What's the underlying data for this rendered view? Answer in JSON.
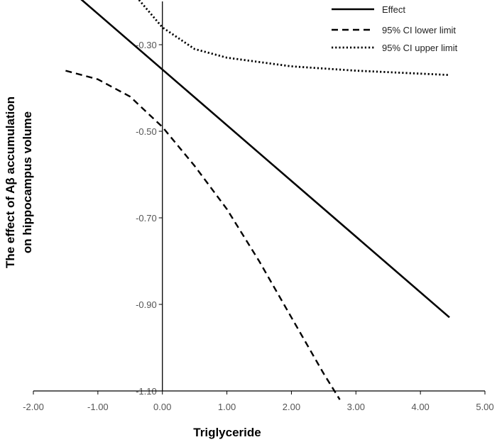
{
  "chart_data": {
    "type": "line",
    "title": "",
    "xlabel": "Triglyceride",
    "ylabel_lines": [
      "The effect of Aβ accumulation",
      "on hippocampus volume"
    ],
    "xlim": [
      -2.0,
      5.0
    ],
    "ylim": [
      -1.1,
      -0.2
    ],
    "x_ticks": [
      -2,
      -1,
      0,
      1,
      2,
      3,
      4,
      5
    ],
    "x_tick_labels": [
      "-2.00",
      "-1.00",
      "0.00",
      "1.00",
      "2.00",
      "3.00",
      "4.00",
      "5.00"
    ],
    "y_ticks": [
      -0.3,
      -0.5,
      -0.7,
      -0.9,
      -1.1
    ],
    "y_tick_labels": [
      "-0.30",
      "-0.50",
      "-0.70",
      "-0.90",
      "-1.10"
    ],
    "legend_position": "top-right",
    "series": [
      {
        "name": "Effect",
        "style": "solid",
        "x": [
          -1.3,
          4.45
        ],
        "y": [
          -0.19,
          -0.93
        ]
      },
      {
        "name": "95% CI lower limit",
        "style": "dashed",
        "x": [
          -1.5,
          -1.0,
          -0.5,
          0.0,
          0.5,
          1.0,
          1.5,
          2.0,
          2.5,
          2.75
        ],
        "y": [
          -0.36,
          -0.38,
          -0.42,
          -0.49,
          -0.58,
          -0.68,
          -0.8,
          -0.93,
          -1.06,
          -1.12
        ]
      },
      {
        "name": "95% CI upper limit",
        "style": "dotted",
        "x": [
          -0.4,
          0.0,
          0.5,
          1.0,
          2.0,
          3.0,
          4.45
        ],
        "y": [
          -0.19,
          -0.26,
          -0.31,
          -0.33,
          -0.35,
          -0.36,
          -0.37
        ]
      }
    ]
  }
}
